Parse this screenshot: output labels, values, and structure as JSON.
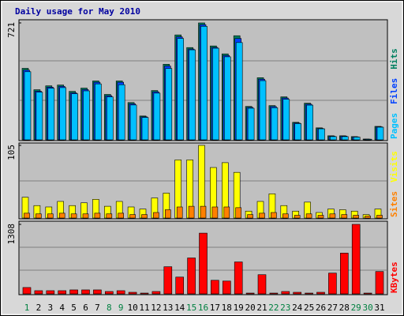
{
  "title": "Daily usage for May 2010",
  "chart_data": [
    {
      "type": "bar",
      "ylim": [
        0,
        721
      ],
      "yticks": [
        721
      ],
      "series": [
        {
          "name": "Hits",
          "color": "#008060",
          "values": [
            441,
            309,
            333,
            338,
            299,
            319,
            363,
            280,
            363,
            230,
            147,
            304,
            466,
            647,
            569,
            721,
            579,
            530,
            642,
            206,
            383,
            211,
            265,
            108,
            226,
            74,
            25,
            25,
            20,
            5,
            83
          ]
        },
        {
          "name": "Files",
          "color": "#0040ff",
          "values": [
            430,
            300,
            325,
            330,
            290,
            310,
            355,
            272,
            355,
            222,
            142,
            296,
            455,
            635,
            560,
            710,
            570,
            520,
            625,
            200,
            374,
            205,
            258,
            104,
            220,
            70,
            22,
            23,
            18,
            4,
            80
          ]
        },
        {
          "name": "Pages",
          "color": "#00c0ff",
          "values": [
            420,
            294,
            318,
            322,
            284,
            302,
            345,
            265,
            340,
            215,
            138,
            288,
            440,
            625,
            555,
            700,
            565,
            512,
            600,
            195,
            365,
            198,
            250,
            100,
            214,
            68,
            20,
            20,
            17,
            4,
            78
          ]
        }
      ]
    },
    {
      "type": "bar",
      "ylim": [
        0,
        105
      ],
      "yticks": [
        105
      ],
      "series": [
        {
          "name": "Visits",
          "color": "#ffff00",
          "values": [
            30,
            18,
            16,
            24,
            18,
            22,
            27,
            17,
            24,
            16,
            13,
            29,
            36,
            84,
            84,
            105,
            73,
            80,
            66,
            10,
            24,
            35,
            18,
            10,
            23,
            8,
            13,
            12,
            10,
            5,
            13
          ]
        },
        {
          "name": "Sites",
          "color": "#ff8000",
          "values": [
            7,
            6,
            6,
            7,
            6,
            6,
            7,
            6,
            7,
            5,
            5,
            8,
            12,
            16,
            17,
            17,
            16,
            16,
            15,
            5,
            7,
            8,
            6,
            4,
            6,
            4,
            6,
            5,
            4,
            3,
            4
          ]
        }
      ]
    },
    {
      "type": "bar",
      "ylim": [
        0,
        1308
      ],
      "yticks": [
        1308
      ],
      "categories": [
        "1",
        "2",
        "3",
        "4",
        "5",
        "6",
        "7",
        "8",
        "9",
        "10",
        "11",
        "12",
        "13",
        "14",
        "15",
        "16",
        "17",
        "18",
        "19",
        "20",
        "21",
        "22",
        "23",
        "24",
        "25",
        "26",
        "27",
        "28",
        "29",
        "30",
        "31"
      ],
      "category_colors": [
        "#008040",
        "#000000",
        "#000000",
        "#000000",
        "#000000",
        "#000000",
        "#000000",
        "#008040",
        "#008040",
        "#000000",
        "#000000",
        "#000000",
        "#000000",
        "#000000",
        "#008040",
        "#008040",
        "#000000",
        "#000000",
        "#000000",
        "#000000",
        "#000000",
        "#008040",
        "#008040",
        "#000000",
        "#000000",
        "#000000",
        "#000000",
        "#000000",
        "#008040",
        "#008040",
        "#000000"
      ],
      "series": [
        {
          "name": "KBytes",
          "color": "#ff0000",
          "values": [
            120,
            60,
            60,
            60,
            75,
            75,
            75,
            45,
            60,
            30,
            15,
            45,
            511,
            316,
            676,
            1143,
            256,
            241,
            601,
            15,
            361,
            15,
            45,
            30,
            15,
            30,
            391,
            767,
            1308,
            15,
            421
          ]
        }
      ]
    }
  ]
}
